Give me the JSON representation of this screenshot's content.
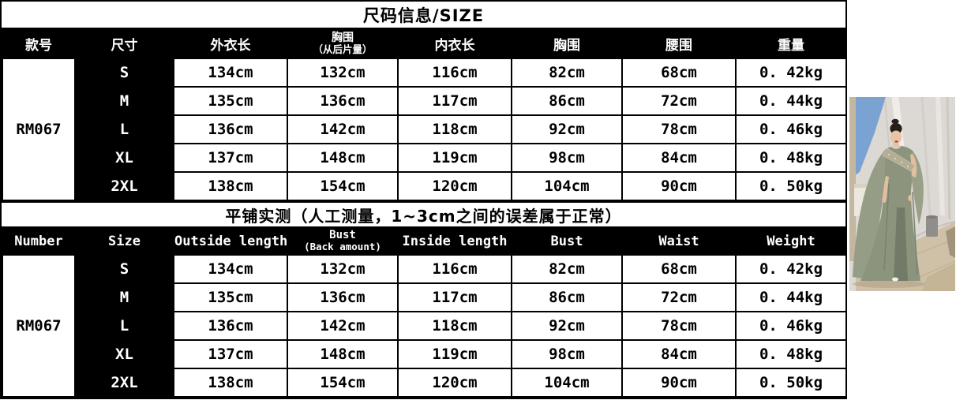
{
  "tables": [
    {
      "title": "尺码信息/SIZE",
      "columns": [
        {
          "label": "款号"
        },
        {
          "label": "尺寸"
        },
        {
          "label": "外衣长"
        },
        {
          "label": "胸围",
          "sublabel": "（从后片量）"
        },
        {
          "label": "内衣长"
        },
        {
          "label": "胸围"
        },
        {
          "label": "腰围"
        },
        {
          "label": "重量"
        }
      ],
      "number": "RM067",
      "rows": [
        {
          "size": "S",
          "values": [
            "134cm",
            "132cm",
            "116cm",
            "82cm",
            "68cm",
            "0. 42kg"
          ]
        },
        {
          "size": "M",
          "values": [
            "135cm",
            "136cm",
            "117cm",
            "86cm",
            "72cm",
            "0. 44kg"
          ]
        },
        {
          "size": "L",
          "values": [
            "136cm",
            "142cm",
            "118cm",
            "92cm",
            "78cm",
            "0. 46kg"
          ]
        },
        {
          "size": "XL",
          "values": [
            "137cm",
            "148cm",
            "119cm",
            "98cm",
            "84cm",
            "0. 48kg"
          ]
        },
        {
          "size": "2XL",
          "values": [
            "138cm",
            "154cm",
            "120cm",
            "104cm",
            "90cm",
            "0. 50kg"
          ]
        }
      ]
    },
    {
      "title": "平铺实测（人工测量，1~3cm之间的误差属于正常）",
      "columns": [
        {
          "label": "Number"
        },
        {
          "label": "Size"
        },
        {
          "label": "Outside length"
        },
        {
          "label": "Bust",
          "sublabel": "(Back amount)"
        },
        {
          "label": "Inside length"
        },
        {
          "label": "Bust"
        },
        {
          "label": "Waist"
        },
        {
          "label": "Weight"
        }
      ],
      "number": "RM067",
      "rows": [
        {
          "size": "S",
          "values": [
            "134cm",
            "132cm",
            "116cm",
            "82cm",
            "68cm",
            "0. 42kg"
          ]
        },
        {
          "size": "M",
          "values": [
            "135cm",
            "136cm",
            "117cm",
            "86cm",
            "72cm",
            "0. 44kg"
          ]
        },
        {
          "size": "L",
          "values": [
            "136cm",
            "142cm",
            "118cm",
            "92cm",
            "78cm",
            "0. 46kg"
          ]
        },
        {
          "size": "XL",
          "values": [
            "137cm",
            "148cm",
            "119cm",
            "98cm",
            "84cm",
            "0. 48kg"
          ]
        },
        {
          "size": "2XL",
          "values": [
            "138cm",
            "154cm",
            "120cm",
            "104cm",
            "90cm",
            "0. 50kg"
          ]
        }
      ]
    }
  ],
  "colors": {
    "table_border": "#000000",
    "header_bg": "#000000",
    "header_text": "#ffffff",
    "cell_bg": "#ffffff",
    "cell_text": "#000000"
  },
  "photo": {
    "subject": "model wearing long sage-green cape dress with sequined band",
    "dress_color": "#8d947e",
    "curtain_color": "#dcd8d3",
    "sky_color": "#7aa3d2",
    "floor_color": "#cfc1a7"
  }
}
